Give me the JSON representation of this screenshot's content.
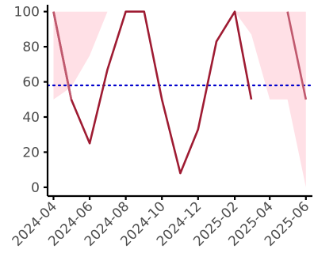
{
  "chart_data": {
    "type": "line",
    "title": "",
    "xlabel": "",
    "ylabel": "",
    "xlim": [
      "2024-03-22",
      "2025-06-12"
    ],
    "ylim": [
      -5,
      103
    ],
    "y_ticks": [
      0,
      20,
      40,
      60,
      80,
      100
    ],
    "y_tick_labels": [
      "0",
      "20",
      "40",
      "60",
      "80",
      "100"
    ],
    "x_ticks": [
      "2024-04-01",
      "2024-06-01",
      "2024-08-01",
      "2024-10-01",
      "2024-12-01",
      "2025-02-01",
      "2025-04-01",
      "2025-06-01"
    ],
    "x_tick_labels": [
      "2024-04",
      "2024-06",
      "2024-08",
      "2024-10",
      "2024-12",
      "2025-02",
      "2025-04",
      "2025-06"
    ],
    "grid": false,
    "legend": "none",
    "series": [
      {
        "role": "observed",
        "color": "#9e1b32",
        "x": [
          "2024-04-01",
          "2024-05-01",
          "2024-06-01",
          "2024-07-01",
          "2024-08-01",
          "2024-09-01",
          "2024-10-01",
          "2024-11-01",
          "2024-12-01",
          "2025-01-01",
          "2025-02-01",
          "2025-03-01"
        ],
        "y": [
          100,
          50,
          25,
          67,
          100,
          100,
          50,
          8,
          33,
          83,
          100,
          50
        ]
      },
      {
        "role": "segment-start",
        "color": "#c0596e",
        "x": [
          "2024-04-01",
          "2024-05-01"
        ],
        "y": [
          100,
          50
        ]
      },
      {
        "role": "segment-end",
        "color": "#c0596e",
        "x": [
          "2025-05-01",
          "2025-06-01"
        ],
        "y": [
          100,
          50
        ]
      }
    ],
    "bands": [
      {
        "color": "#ffe0e6",
        "x": [
          "2024-04-01",
          "2024-05-01",
          "2024-06-01",
          "2024-07-01"
        ],
        "upper": [
          100,
          100,
          100,
          100
        ],
        "lower": [
          50,
          57,
          75,
          100
        ]
      },
      {
        "color": "#ffe0e6",
        "x": [
          "2025-02-01",
          "2025-03-01",
          "2025-04-01",
          "2025-05-01",
          "2025-06-01"
        ],
        "upper": [
          100,
          100,
          100,
          100,
          100
        ],
        "lower": [
          100,
          87,
          50,
          50,
          0
        ]
      }
    ],
    "hline": {
      "y": 58,
      "color": "#0000cc",
      "style": "dotted"
    }
  }
}
